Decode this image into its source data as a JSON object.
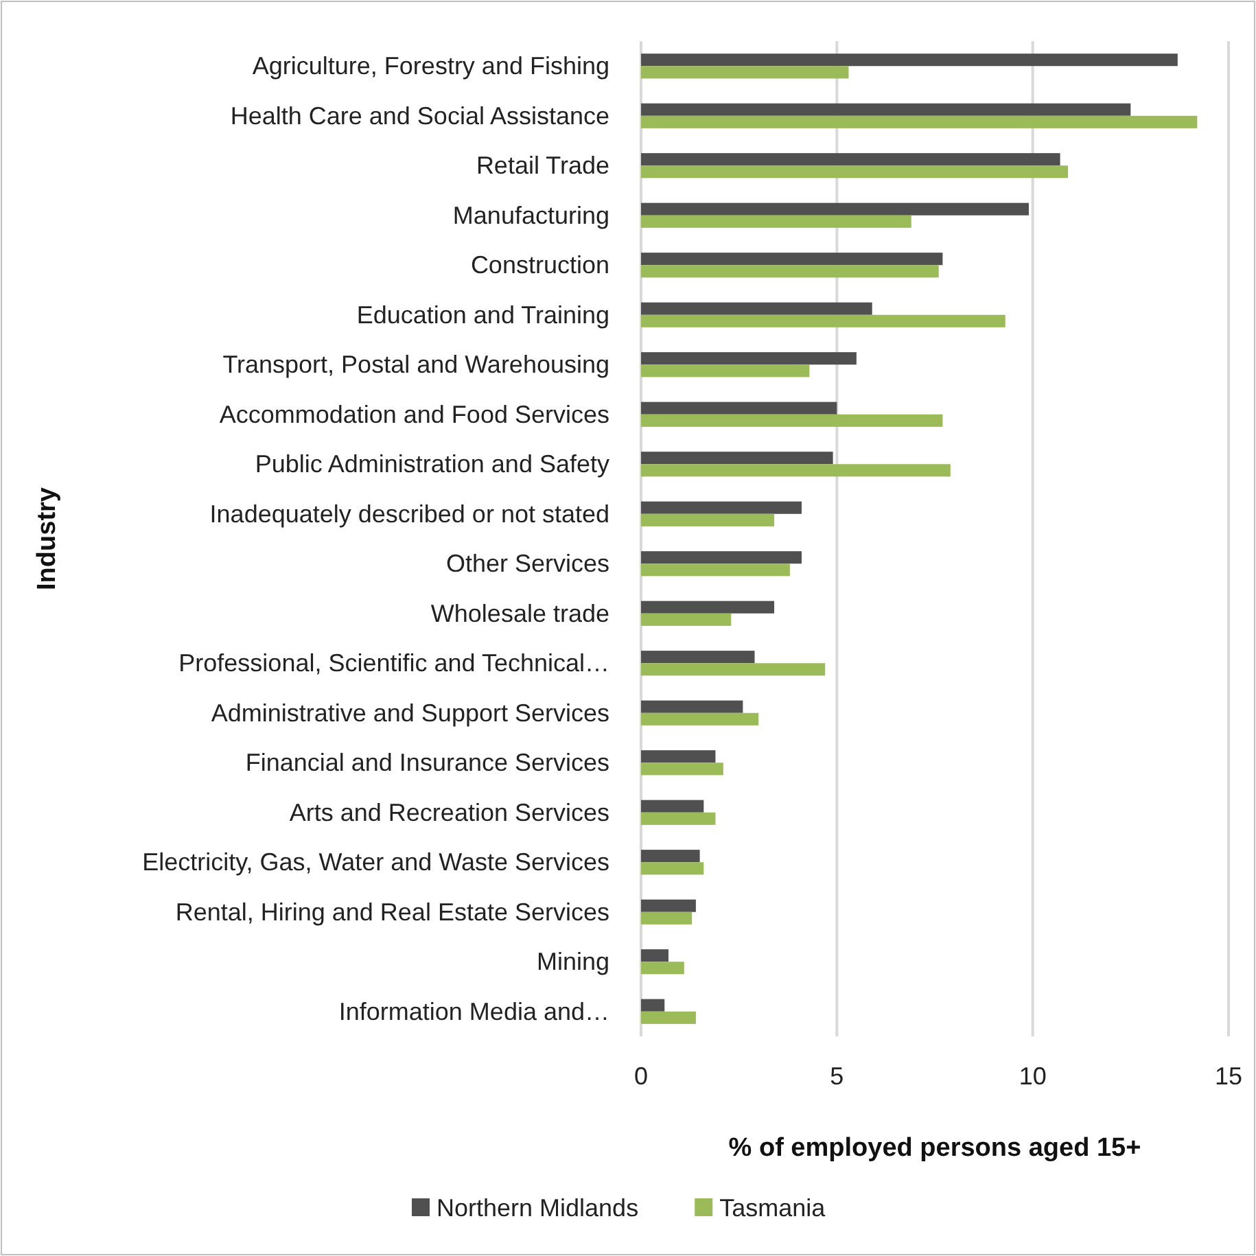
{
  "chart_data": {
    "type": "bar",
    "orientation": "horizontal",
    "categories": [
      "Agriculture, Forestry and Fishing",
      "Health Care and Social Assistance",
      "Retail Trade",
      "Manufacturing",
      "Construction",
      "Education and Training",
      "Transport, Postal and Warehousing",
      "Accommodation and Food Services",
      "Public Administration and Safety",
      "Inadequately described or not stated",
      "Other Services",
      "Wholesale trade",
      "Professional, Scientific and Technical…",
      "Administrative and Support Services",
      "Financial and Insurance Services",
      "Arts and Recreation Services",
      "Electricity, Gas, Water and Waste Services",
      "Rental, Hiring and Real Estate Services",
      "Mining",
      "Information Media and…"
    ],
    "series": [
      {
        "name": "Northern Midlands",
        "color": "#505050",
        "values": [
          13.7,
          12.5,
          10.7,
          9.9,
          7.7,
          5.9,
          5.5,
          5.0,
          4.9,
          4.1,
          4.1,
          3.4,
          2.9,
          2.6,
          1.9,
          1.6,
          1.5,
          1.4,
          0.7,
          0.6
        ]
      },
      {
        "name": "Tasmania",
        "color": "#9bbb59",
        "values": [
          5.3,
          14.2,
          10.9,
          6.9,
          7.6,
          9.3,
          4.3,
          7.7,
          7.9,
          3.4,
          3.8,
          2.3,
          4.7,
          3.0,
          2.1,
          1.9,
          1.6,
          1.3,
          1.1,
          1.4
        ]
      }
    ],
    "xlim": [
      0,
      15
    ],
    "xticks": [
      0,
      5,
      10,
      15
    ],
    "xlabel": "% of employed persons aged 15+",
    "ylabel": "Industry",
    "grid": "x",
    "legend": "bottom"
  }
}
